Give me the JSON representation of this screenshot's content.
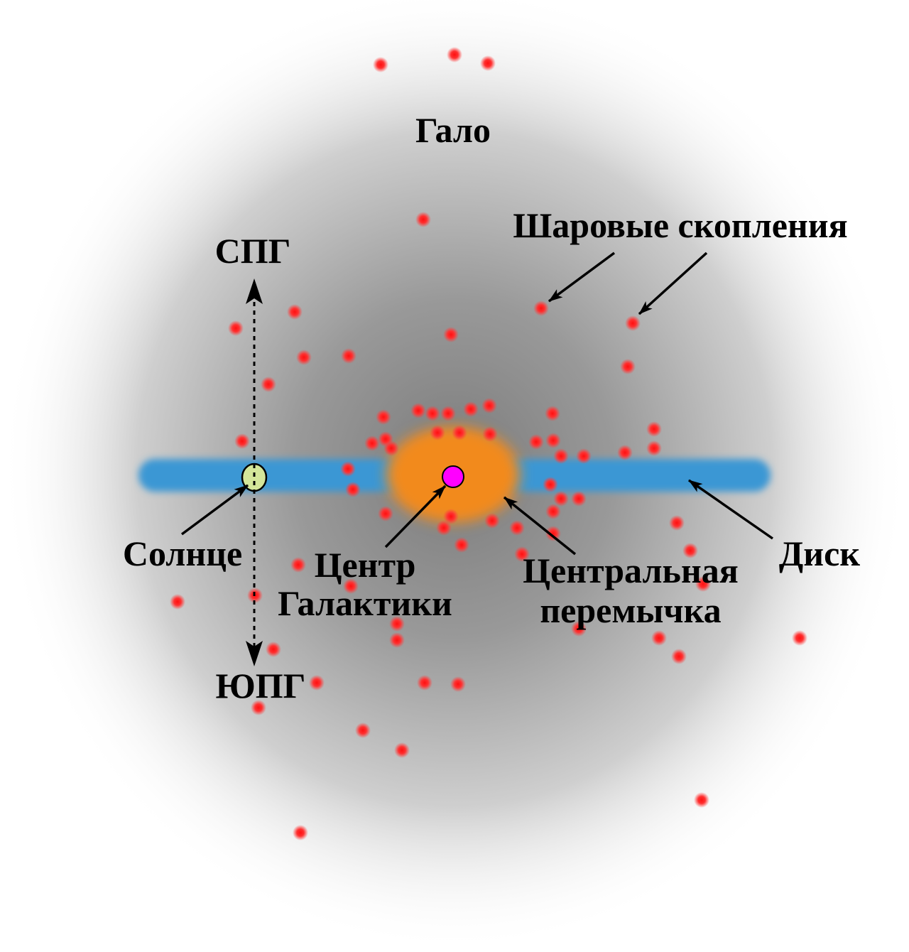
{
  "labels": {
    "halo": "Гало",
    "globular_clusters": "Шаровые скопления",
    "ngp": "СПГ",
    "sgp": "ЮПГ",
    "sun": "Солнце",
    "galactic_center_line1": "Центр",
    "galactic_center_line2": "Галактики",
    "central_bar_line1": "Центральная",
    "central_bar_line2": "перемычка",
    "disk": "Диск"
  },
  "colors": {
    "halo": "#8a8a8a",
    "disk": "#3a97d4",
    "bulge": "#f28a1c",
    "sun": "#d4e69a",
    "center": "#ff00ff",
    "cluster": "#ff1a1a"
  }
}
